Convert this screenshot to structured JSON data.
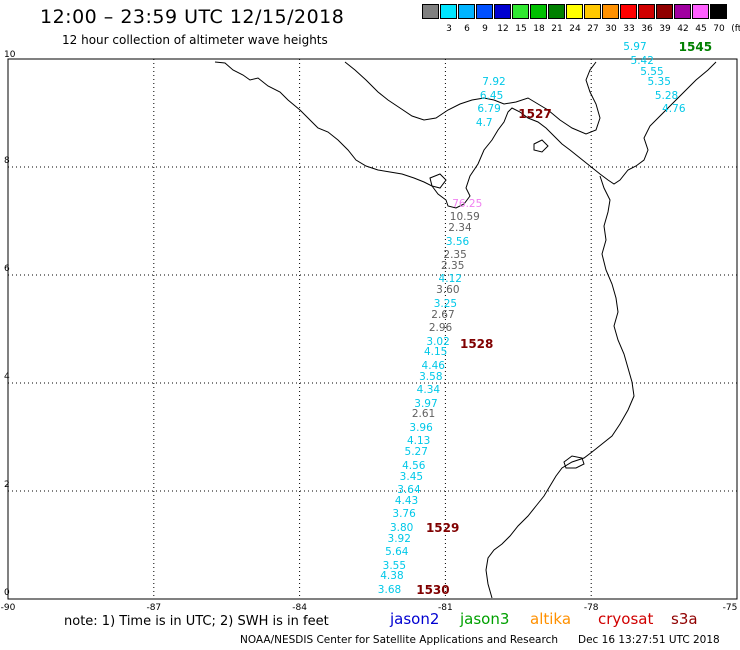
{
  "header": {
    "title": "12:00 – 23:59 UTC 12/15/2018",
    "subtitle": "12 hour collection of altimeter wave heights"
  },
  "legend": {
    "unit": "(ft)",
    "swatches": [
      {
        "label": "",
        "color": "#808080"
      },
      {
        "label": "3",
        "color": "#00e5ff"
      },
      {
        "label": "6",
        "color": "#00b4ff"
      },
      {
        "label": "9",
        "color": "#0050ff"
      },
      {
        "label": "12",
        "color": "#0000d0"
      },
      {
        "label": "15",
        "color": "#30e830"
      },
      {
        "label": "18",
        "color": "#00c000"
      },
      {
        "label": "21",
        "color": "#008000"
      },
      {
        "label": "24",
        "color": "#ffff00"
      },
      {
        "label": "27",
        "color": "#ffc800"
      },
      {
        "label": "30",
        "color": "#ff9000"
      },
      {
        "label": "33",
        "color": "#ff0000"
      },
      {
        "label": "36",
        "color": "#d00000"
      },
      {
        "label": "39",
        "color": "#900000"
      },
      {
        "label": "42",
        "color": "#a000a0"
      },
      {
        "label": "45",
        "color": "#ff60ff"
      },
      {
        "label": "70",
        "color": "#000000"
      }
    ]
  },
  "axes": {
    "y_ticks": [
      "10",
      "8",
      "6",
      "4",
      "2",
      "0"
    ],
    "x_ticks": [
      "-90",
      "-87",
      "-84",
      "-81",
      "-78",
      "-75"
    ]
  },
  "colors": {
    "cyan": "#00c8e8",
    "gray": "#606060",
    "pink": "#f080f0",
    "time_red": "#800000",
    "time_green": "#008000"
  },
  "wave_heights": [
    {
      "text": "7.92",
      "lon": -80.0,
      "lat": 9.55,
      "color": "cyan"
    },
    {
      "text": "6.45",
      "lon": -80.05,
      "lat": 9.3,
      "color": "cyan"
    },
    {
      "text": "6.79",
      "lon": -80.1,
      "lat": 9.05,
      "color": "cyan"
    },
    {
      "text": "4.7",
      "lon": -80.2,
      "lat": 8.8,
      "color": "cyan"
    },
    {
      "text": "76.25",
      "lon": -80.55,
      "lat": 7.3,
      "color": "pink"
    },
    {
      "text": "10.59",
      "lon": -80.6,
      "lat": 7.05,
      "color": "gray"
    },
    {
      "text": "2.34",
      "lon": -80.7,
      "lat": 6.85,
      "color": "gray"
    },
    {
      "text": "3.56",
      "lon": -80.75,
      "lat": 6.6,
      "color": "cyan"
    },
    {
      "text": "2.35",
      "lon": -80.8,
      "lat": 6.35,
      "color": "gray"
    },
    {
      "text": "2.35",
      "lon": -80.85,
      "lat": 6.15,
      "color": "gray"
    },
    {
      "text": "4.12",
      "lon": -80.9,
      "lat": 5.9,
      "color": "cyan"
    },
    {
      "text": "3.60",
      "lon": -80.95,
      "lat": 5.7,
      "color": "gray"
    },
    {
      "text": "3.25",
      "lon": -81.0,
      "lat": 5.45,
      "color": "cyan"
    },
    {
      "text": "2.67",
      "lon": -81.05,
      "lat": 5.25,
      "color": "gray"
    },
    {
      "text": "2.96",
      "lon": -81.1,
      "lat": 5.0,
      "color": "gray"
    },
    {
      "text": "3.02",
      "lon": -81.15,
      "lat": 4.75,
      "color": "cyan"
    },
    {
      "text": "4.15",
      "lon": -81.2,
      "lat": 4.55,
      "color": "cyan"
    },
    {
      "text": "4.46",
      "lon": -81.25,
      "lat": 4.3,
      "color": "cyan"
    },
    {
      "text": "3.58",
      "lon": -81.3,
      "lat": 4.1,
      "color": "cyan"
    },
    {
      "text": "4.34",
      "lon": -81.35,
      "lat": 3.85,
      "color": "cyan"
    },
    {
      "text": "3.97",
      "lon": -81.4,
      "lat": 3.6,
      "color": "cyan"
    },
    {
      "text": "2.61",
      "lon": -81.45,
      "lat": 3.4,
      "color": "gray"
    },
    {
      "text": "3.96",
      "lon": -81.5,
      "lat": 3.15,
      "color": "cyan"
    },
    {
      "text": "4.13",
      "lon": -81.55,
      "lat": 2.9,
      "color": "cyan"
    },
    {
      "text": "5.27",
      "lon": -81.6,
      "lat": 2.7,
      "color": "cyan"
    },
    {
      "text": "4.56",
      "lon": -81.65,
      "lat": 2.45,
      "color": "cyan"
    },
    {
      "text": "3.45",
      "lon": -81.7,
      "lat": 2.25,
      "color": "cyan"
    },
    {
      "text": "3.64",
      "lon": -81.75,
      "lat": 2.0,
      "color": "cyan"
    },
    {
      "text": "4.43",
      "lon": -81.8,
      "lat": 1.8,
      "color": "cyan"
    },
    {
      "text": "3.76",
      "lon": -81.85,
      "lat": 1.55,
      "color": "cyan"
    },
    {
      "text": "3.80",
      "lon": -81.9,
      "lat": 1.3,
      "color": "cyan"
    },
    {
      "text": "3.92",
      "lon": -81.95,
      "lat": 1.1,
      "color": "cyan"
    },
    {
      "text": "5.64",
      "lon": -82.0,
      "lat": 0.85,
      "color": "cyan"
    },
    {
      "text": "3.55",
      "lon": -82.05,
      "lat": 0.6,
      "color": "cyan"
    },
    {
      "text": "4.38",
      "lon": -82.1,
      "lat": 0.4,
      "color": "cyan"
    },
    {
      "text": "3.68",
      "lon": -82.15,
      "lat": 0.15,
      "color": "cyan"
    },
    {
      "text": "5.97",
      "lon": -77.1,
      "lat": 10.2,
      "color": "cyan"
    },
    {
      "text": "5.42",
      "lon": -76.95,
      "lat": 9.95,
      "color": "cyan"
    },
    {
      "text": "5.55",
      "lon": -76.75,
      "lat": 9.75,
      "color": "cyan"
    },
    {
      "text": "5.35",
      "lon": -76.6,
      "lat": 9.55,
      "color": "cyan"
    },
    {
      "text": "5.28",
      "lon": -76.45,
      "lat": 9.3,
      "color": "cyan"
    },
    {
      "text": "4.76",
      "lon": -76.3,
      "lat": 9.05,
      "color": "cyan"
    }
  ],
  "time_labels": [
    {
      "text": "1527",
      "lon": -79.5,
      "lat": 8.97,
      "color": "time_red"
    },
    {
      "text": "1528",
      "lon": -80.7,
      "lat": 4.7,
      "color": "time_red"
    },
    {
      "text": "1529",
      "lon": -81.4,
      "lat": 1.3,
      "color": "time_red"
    },
    {
      "text": "1530",
      "lon": -81.6,
      "lat": 0.15,
      "color": "time_red"
    },
    {
      "text": "1545",
      "lon": -76.2,
      "lat": 10.2,
      "color": "time_green"
    }
  ],
  "footer": {
    "note": "note: 1) Time is in UTC; 2) SWH is in feet",
    "satellites": [
      {
        "name": "jason2",
        "color": "#0000d0"
      },
      {
        "name": "jason3",
        "color": "#00a000"
      },
      {
        "name": "altika",
        "color": "#ff9000"
      },
      {
        "name": "cryosat",
        "color": "#d00000"
      },
      {
        "name": "s3a",
        "color": "#900000"
      }
    ],
    "credit": "NOAA/NESDIS Center for Satellite Applications and Research",
    "timestamp": "Dec 16 13:27:51 UTC 2018"
  }
}
